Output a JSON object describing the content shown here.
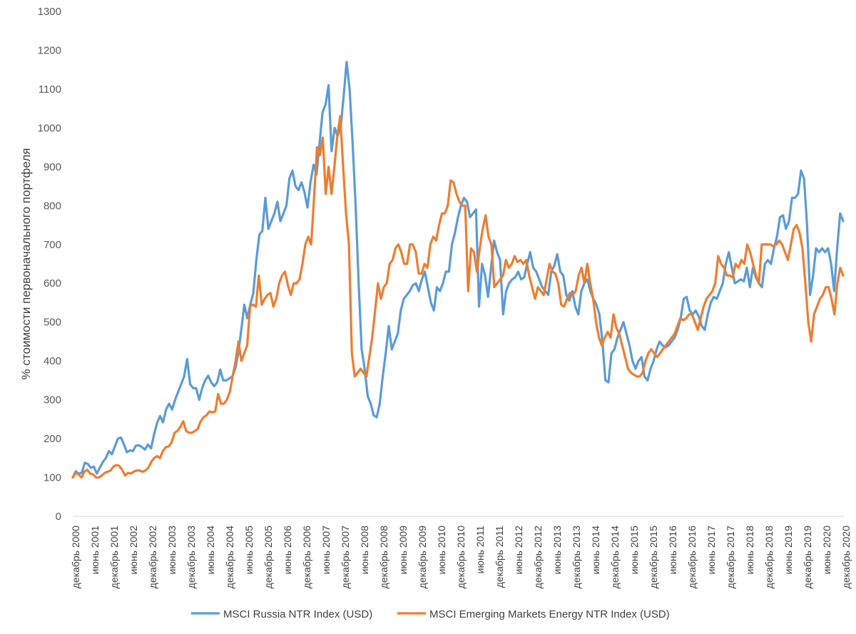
{
  "chart_data": {
    "type": "line",
    "title": "",
    "xlabel": "",
    "ylabel": "% стоимости первоначального портфеля",
    "ylim": [
      0,
      1300
    ],
    "yticks": [
      "0",
      "100",
      "200",
      "300",
      "400",
      "500",
      "600",
      "700",
      "800",
      "900",
      "1000",
      "1100",
      "1200",
      "1300"
    ],
    "grid": false,
    "legend_position": "bottom",
    "x_labels": [
      "декабрь 2000",
      "июнь 2001",
      "декабрь 2001",
      "июнь 2002",
      "декабрь 2002",
      "июнь 2003",
      "декабрь 2003",
      "июнь 2004",
      "декабрь 2004",
      "июнь 2005",
      "декабрь 2005",
      "июнь 2006",
      "декабрь 2006",
      "июнь 2007",
      "декабрь 2007",
      "июнь 2008",
      "декабрь 2008",
      "июнь 2009",
      "декабрь 2009",
      "июнь 2010",
      "декабрь 2010",
      "июнь 2011",
      "декабрь 2011",
      "июнь 2012",
      "декабрь 2012",
      "июнь 2013",
      "декабрь 2013",
      "июнь 2014",
      "декабрь 2014",
      "июнь 2015",
      "декабрь 2015",
      "июнь 2016",
      "декабрь 2016",
      "июнь 2017",
      "декабрь 2017",
      "июнь 2018",
      "декабрь 2018",
      "июнь 2019",
      "декабрь 2019",
      "июнь 2020",
      "декабрь 2020"
    ],
    "series": [
      {
        "name": "MSCI Russia NTR Index (USD)",
        "color": "#5B9BD5",
        "values": [
          100,
          116,
          110,
          112,
          138,
          135,
          125,
          128,
          110,
          125,
          140,
          150,
          168,
          160,
          180,
          200,
          203,
          185,
          165,
          170,
          168,
          182,
          183,
          178,
          172,
          185,
          175,
          210,
          240,
          258,
          242,
          275,
          290,
          275,
          300,
          320,
          340,
          360,
          405,
          340,
          330,
          330,
          300,
          330,
          350,
          362,
          345,
          335,
          345,
          378,
          350,
          350,
          355,
          360,
          380,
          420,
          480,
          545,
          510,
          545,
          575,
          660,
          725,
          735,
          820,
          740,
          760,
          780,
          810,
          760,
          780,
          800,
          870,
          890,
          850,
          840,
          860,
          835,
          795,
          860,
          905,
          880,
          960,
          1040,
          1060,
          1110,
          940,
          1000,
          980,
          1000,
          1080,
          1170,
          1100,
          960,
          800,
          600,
          430,
          380,
          310,
          290,
          260,
          255,
          290,
          360,
          420,
          490,
          430,
          450,
          470,
          530,
          560,
          570,
          580,
          595,
          600,
          580,
          610,
          630,
          590,
          550,
          530,
          590,
          580,
          600,
          630,
          630,
          700,
          730,
          770,
          800,
          820,
          810,
          770,
          780,
          790,
          540,
          650,
          620,
          565,
          640,
          710,
          680,
          660,
          520,
          580,
          600,
          610,
          615,
          630,
          610,
          615,
          650,
          680,
          640,
          630,
          610,
          590,
          580,
          570,
          630,
          645,
          675,
          630,
          620,
          570,
          555,
          580,
          540,
          520,
          580,
          600,
          610,
          580,
          560,
          545,
          520,
          450,
          350,
          345,
          420,
          430,
          460,
          480,
          500,
          470,
          440,
          400,
          380,
          400,
          410,
          360,
          350,
          380,
          400,
          430,
          450,
          440,
          435,
          440,
          450,
          460,
          480,
          510,
          560,
          565,
          530,
          520,
          530,
          515,
          490,
          480,
          520,
          550,
          565,
          560,
          580,
          600,
          650,
          680,
          640,
          600,
          605,
          610,
          605,
          640,
          590,
          640,
          615,
          600,
          590,
          650,
          660,
          650,
          690,
          720,
          770,
          775,
          740,
          760,
          820,
          820,
          830,
          890,
          870,
          750,
          570,
          620,
          690,
          680,
          690,
          680,
          690,
          650,
          580,
          690,
          780,
          760
        ]
      },
      {
        "name": "MSCI Emerging Markets Energy NTR Index (USD)",
        "color": "#ED7D31",
        "values": [
          100,
          112,
          108,
          100,
          115,
          120,
          110,
          108,
          100,
          100,
          105,
          112,
          115,
          118,
          128,
          132,
          130,
          120,
          105,
          112,
          110,
          115,
          118,
          118,
          115,
          118,
          125,
          140,
          150,
          155,
          150,
          168,
          178,
          180,
          190,
          215,
          220,
          230,
          245,
          220,
          215,
          215,
          220,
          225,
          245,
          255,
          260,
          270,
          268,
          270,
          315,
          290,
          290,
          300,
          320,
          360,
          400,
          450,
          400,
          420,
          440,
          540,
          545,
          540,
          620,
          545,
          560,
          570,
          575,
          540,
          560,
          600,
          620,
          630,
          595,
          570,
          600,
          600,
          610,
          650,
          700,
          720,
          700,
          820,
          950,
          930,
          975,
          830,
          900,
          830,
          900,
          980,
          1030,
          900,
          780,
          700,
          420,
          360,
          370,
          380,
          370,
          360,
          410,
          460,
          530,
          600,
          560,
          590,
          600,
          650,
          660,
          690,
          700,
          680,
          650,
          650,
          700,
          700,
          680,
          625,
          625,
          650,
          640,
          700,
          720,
          710,
          750,
          780,
          780,
          800,
          865,
          860,
          830,
          810,
          800,
          800,
          580,
          690,
          680,
          630,
          690,
          740,
          775,
          720,
          700,
          590,
          600,
          610,
          620,
          660,
          640,
          650,
          670,
          655,
          660,
          650,
          660,
          620,
          590,
          560,
          590,
          580,
          570,
          610,
          650,
          630,
          625,
          600,
          545,
          540,
          560,
          575,
          570,
          580,
          620,
          640,
          600,
          650,
          600,
          560,
          500,
          460,
          440,
          460,
          475,
          460,
          520,
          485,
          470,
          440,
          410,
          380,
          370,
          365,
          360,
          360,
          370,
          400,
          420,
          430,
          420,
          410,
          420,
          430,
          440,
          450,
          460,
          470,
          490,
          510,
          505,
          510,
          520,
          520,
          500,
          480,
          510,
          540,
          560,
          570,
          580,
          600,
          670,
          650,
          640,
          620,
          620,
          615,
          650,
          640,
          660,
          650,
          700,
          680,
          650,
          620,
          600,
          700,
          700,
          700,
          700,
          695,
          700,
          710,
          700,
          680,
          660,
          700,
          740,
          750,
          730,
          690,
          600,
          500,
          450,
          520,
          540,
          560,
          570,
          590,
          590,
          560,
          520,
          600,
          640,
          620
        ]
      }
    ]
  }
}
